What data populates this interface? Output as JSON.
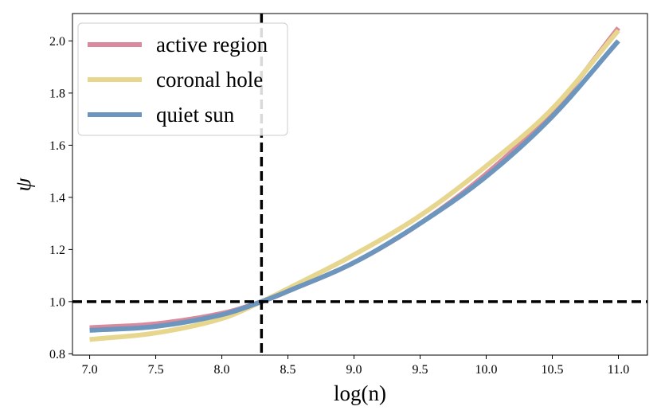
{
  "chart_data": {
    "type": "line",
    "title": "",
    "xlabel": "log(n)",
    "ylabel": "ψ",
    "xlim": [
      6.87,
      11.22
    ],
    "ylim": [
      0.795,
      2.105
    ],
    "xticks": [
      7.0,
      7.5,
      8.0,
      8.5,
      9.0,
      9.5,
      10.0,
      10.5,
      11.0
    ],
    "xtick_labels": [
      "7.0",
      "7.5",
      "8.0",
      "8.5",
      "9.0",
      "9.5",
      "10.0",
      "10.5",
      "11.0"
    ],
    "yticks": [
      0.8,
      1.0,
      1.2,
      1.4,
      1.6,
      1.8,
      2.0
    ],
    "ytick_labels": [
      "0.8",
      "1.0",
      "1.2",
      "1.4",
      "1.6",
      "1.8",
      "2.0"
    ],
    "grid": false,
    "legend_position": "top-left",
    "reference_lines": [
      {
        "orientation": "vertical",
        "value": 8.3,
        "style": "dashed",
        "color": "#000000"
      },
      {
        "orientation": "horizontal",
        "value": 1.0,
        "style": "dashed",
        "color": "#000000"
      }
    ],
    "x": [
      7.0,
      7.5,
      8.0,
      8.3,
      8.5,
      9.0,
      9.5,
      10.0,
      10.5,
      11.0
    ],
    "series": [
      {
        "name": "active region",
        "color": "#d98a9c",
        "values": [
          0.9,
          0.915,
          0.955,
          1.0,
          1.04,
          1.15,
          1.3,
          1.49,
          1.73,
          2.05
        ]
      },
      {
        "name": "coronal hole",
        "color": "#e6d68e",
        "values": [
          0.855,
          0.88,
          0.935,
          1.0,
          1.05,
          1.18,
          1.33,
          1.52,
          1.74,
          2.04
        ]
      },
      {
        "name": "quiet sun",
        "color": "#6c96bd",
        "values": [
          0.89,
          0.905,
          0.95,
          1.0,
          1.04,
          1.15,
          1.3,
          1.48,
          1.71,
          2.0
        ]
      }
    ]
  }
}
